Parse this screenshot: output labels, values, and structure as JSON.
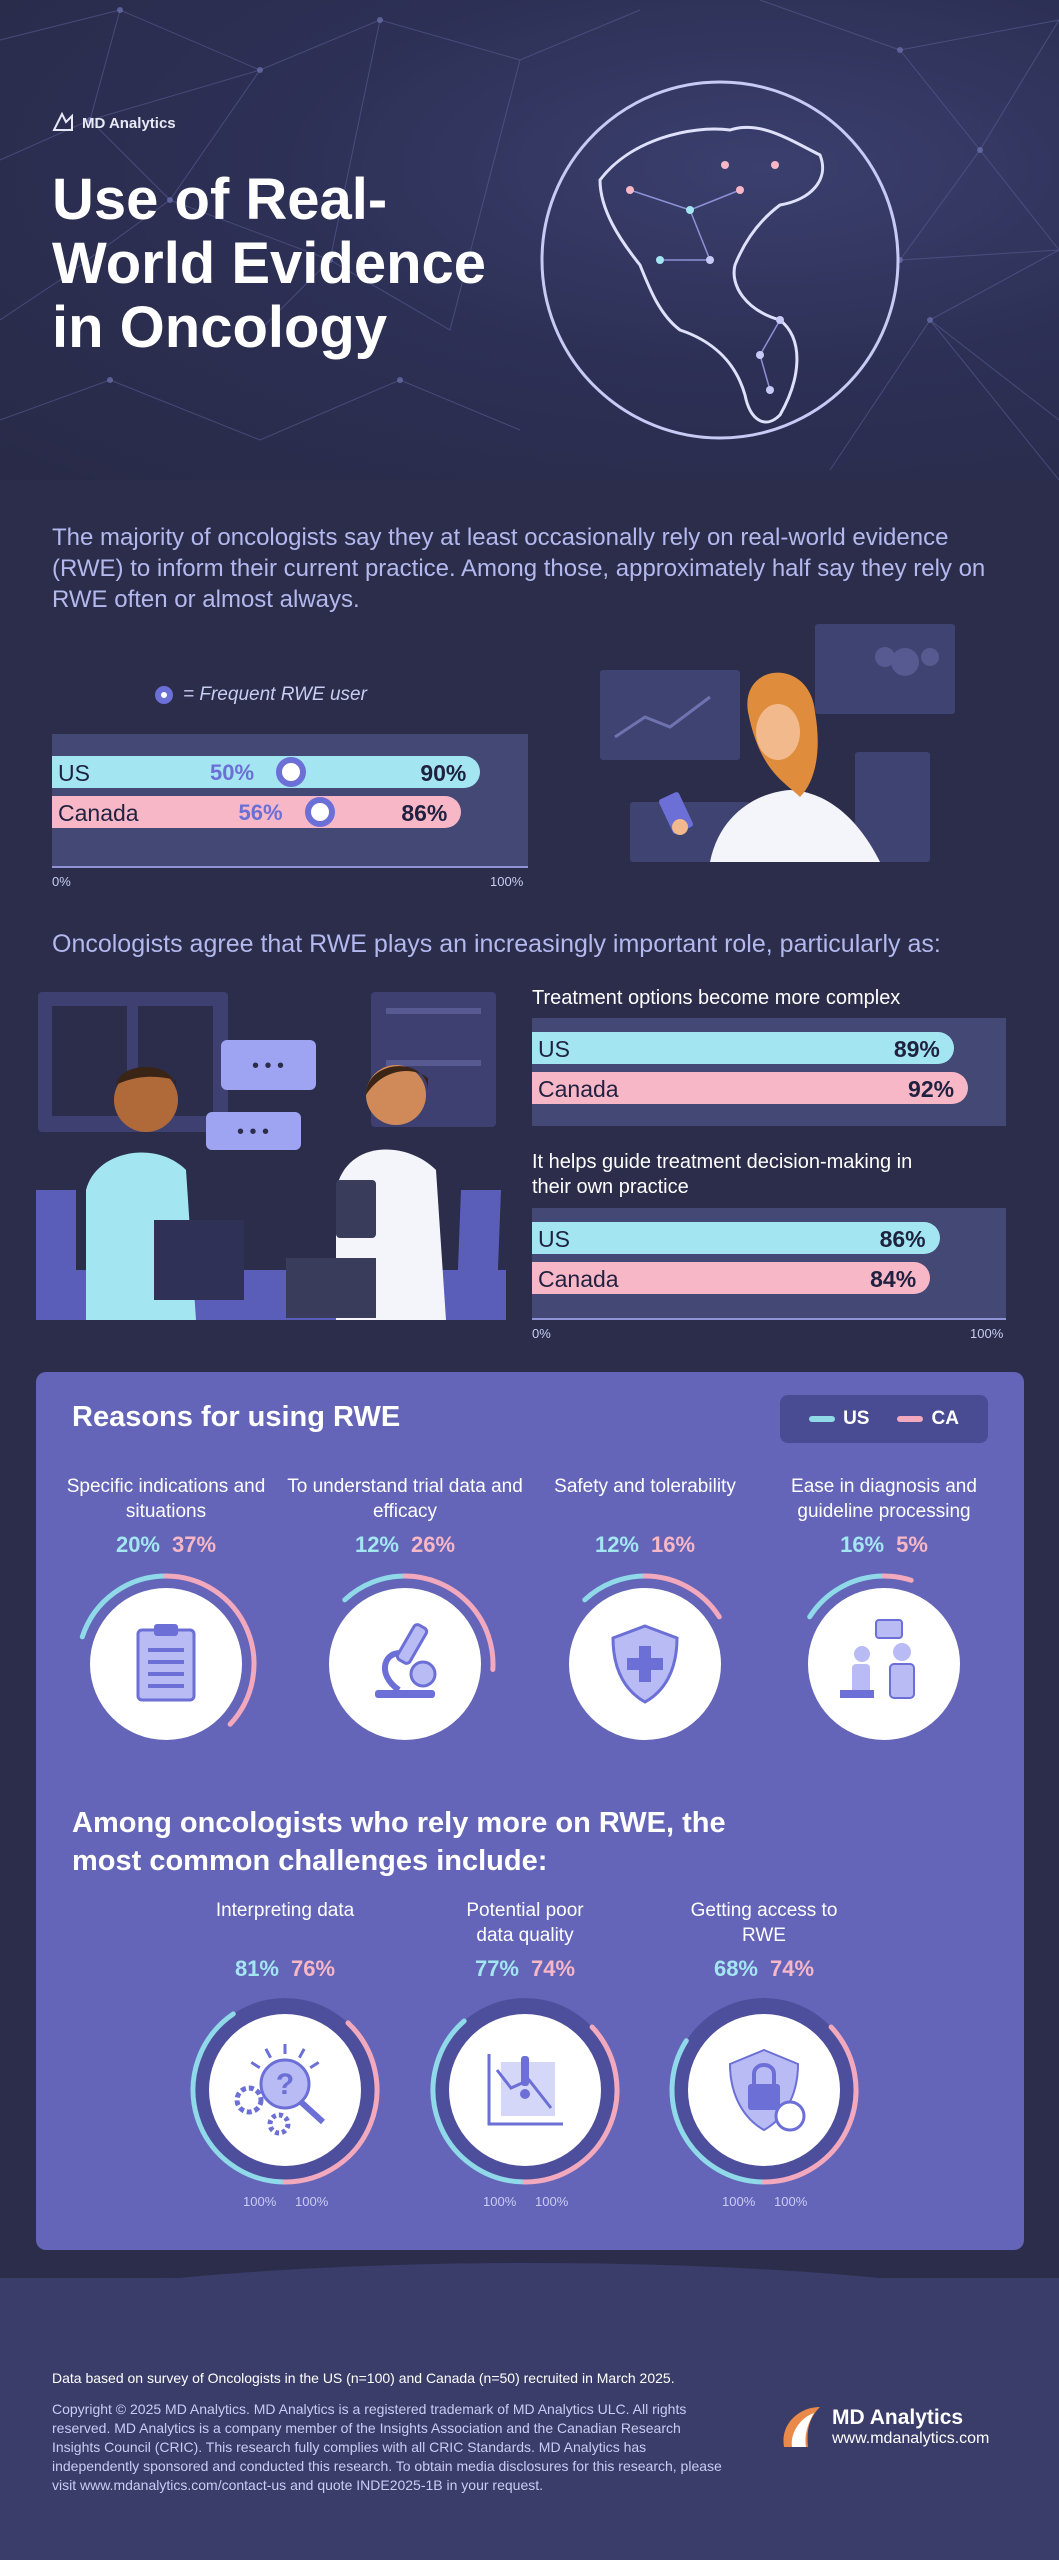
{
  "header": {
    "brand": "MD Analytics",
    "title": "Use of Real-World Evidence in Oncology"
  },
  "intro": "The majority of oncologists say they at least occasionally rely on real-world evidence (RWE) to inform their current practice. Among those, approximately half say they rely on RWE often or almost always.",
  "usage": {
    "legend": "= Frequent RWE user",
    "rows": [
      {
        "label": "US",
        "frequent": "50%",
        "total": "90%",
        "frequent_value": 50,
        "total_value": 90
      },
      {
        "label": "Canada",
        "frequent": "56%",
        "total": "86%",
        "frequent_value": 56,
        "total_value": 86
      }
    ],
    "axis_min": "0%",
    "axis_max": "100%"
  },
  "role": {
    "heading": "Oncologists agree that RWE plays an increasingly important role, particularly as:",
    "groups": [
      {
        "question": "Treatment options become more complex",
        "rows": [
          {
            "label": "US",
            "value": "89%",
            "num": 89
          },
          {
            "label": "Canada",
            "value": "92%",
            "num": 92
          }
        ]
      },
      {
        "question": "It helps guide treatment decision-making in their own practice",
        "rows": [
          {
            "label": "US",
            "value": "86%",
            "num": 86
          },
          {
            "label": "Canada",
            "value": "84%",
            "num": 84
          }
        ]
      }
    ],
    "axis_min": "0%",
    "axis_max": "100%"
  },
  "reasons": {
    "heading": "Reasons for using RWE",
    "legend_us": "US",
    "legend_ca": "CA",
    "colors": {
      "us": "#8fd9e8",
      "ca": "#f2a9bd"
    },
    "items": [
      {
        "title": "Specific indications and situations",
        "us": "20%",
        "ca": "37%",
        "us_num": 20,
        "ca_num": 37,
        "icon": "clipboard-icon"
      },
      {
        "title": "To understand trial data and efficacy",
        "us": "12%",
        "ca": "26%",
        "us_num": 12,
        "ca_num": 26,
        "icon": "microscope-icon"
      },
      {
        "title": "Safety and tolerability",
        "us": "12%",
        "ca": "16%",
        "us_num": 12,
        "ca_num": 16,
        "icon": "shield-cross-icon"
      },
      {
        "title": "Ease in diagnosis and guideline processing",
        "us": "16%",
        "ca": "5%",
        "us_num": 16,
        "ca_num": 5,
        "icon": "doctor-patient-icon"
      }
    ]
  },
  "challenges": {
    "heading": "Among oncologists who rely more on RWE, the most common challenges include:",
    "max_label": "100%",
    "items": [
      {
        "title": "Interpreting data",
        "us": "81%",
        "ca": "76%",
        "us_num": 81,
        "ca_num": 76,
        "icon": "gears-question-icon"
      },
      {
        "title": "Potential poor data quality",
        "us": "77%",
        "ca": "74%",
        "us_num": 77,
        "ca_num": 74,
        "icon": "chart-warning-icon"
      },
      {
        "title": "Getting access to RWE",
        "us": "68%",
        "ca": "74%",
        "us_num": 68,
        "ca_num": 74,
        "icon": "shield-lock-icon"
      }
    ]
  },
  "footer": {
    "note": "Data based on survey of Oncologists in the US (n=100) and Canada (n=50) recruited in March 2025.",
    "copyright": "Copyright © 2025 MD Analytics. MD Analytics is a registered trademark of MD Analytics ULC. All rights reserved. MD Analytics is a company member of the Insights Association and the Canadian Research Insights Council (CRIC). This research fully complies with all CRIC Standards. MD Analytics has independently sponsored and conducted this research. To obtain media disclosures for this research, please visit www.mdanalytics.com/contact-us and quote INDE2025-1B in your request.",
    "brand": "MD Analytics",
    "url": "www.mdanalytics.com"
  }
}
